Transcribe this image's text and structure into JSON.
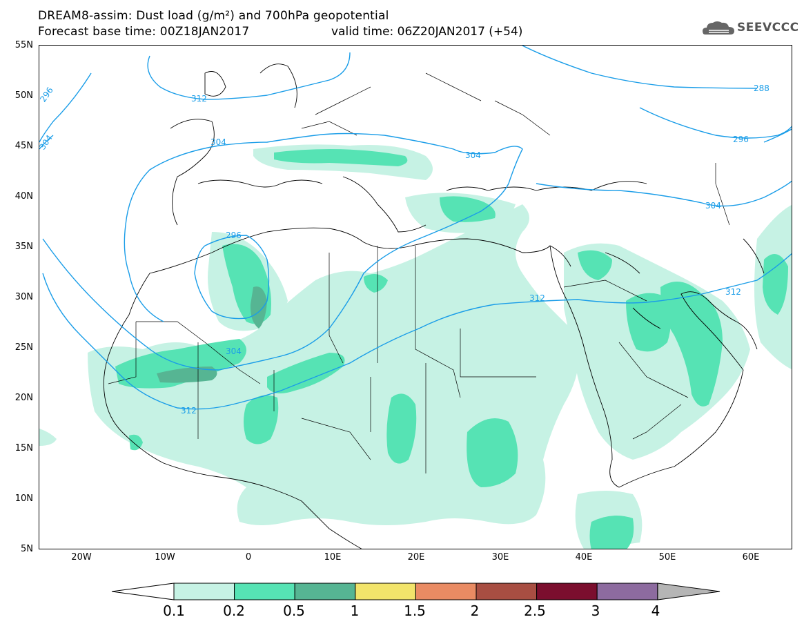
{
  "header": {
    "title": "DREAM8-assim: Dust load (g/m²) and 700hPa geopotential",
    "base_time": "Forecast base time: 00Z18JAN2017",
    "valid_time": "valid time: 06Z20JAN2017 (+54)",
    "logo_text": "SEEVCCC"
  },
  "map": {
    "lat_labels": [
      "55N",
      "50N",
      "45N",
      "40N",
      "35N",
      "30N",
      "25N",
      "20N",
      "15N",
      "10N",
      "5N"
    ],
    "lon_labels": [
      "20W",
      "10W",
      "0",
      "10E",
      "20E",
      "30E",
      "40E",
      "50E",
      "60E"
    ],
    "contour_labels": [
      "296",
      "304",
      "312",
      "296",
      "304",
      "312",
      "304",
      "304",
      "312",
      "312",
      "288",
      "296",
      "304"
    ]
  },
  "colorbar": {
    "labels": [
      "0.1",
      "0.2",
      "0.5",
      "1",
      "1.5",
      "2",
      "2.5",
      "3",
      "4"
    ],
    "colors": [
      "#c6f2e4",
      "#56e3b4",
      "#56b593",
      "#f2e46b",
      "#e98b63",
      "#a84e42",
      "#7b0e2e",
      "#8d6b9f",
      "#b5b5b5"
    ]
  }
}
